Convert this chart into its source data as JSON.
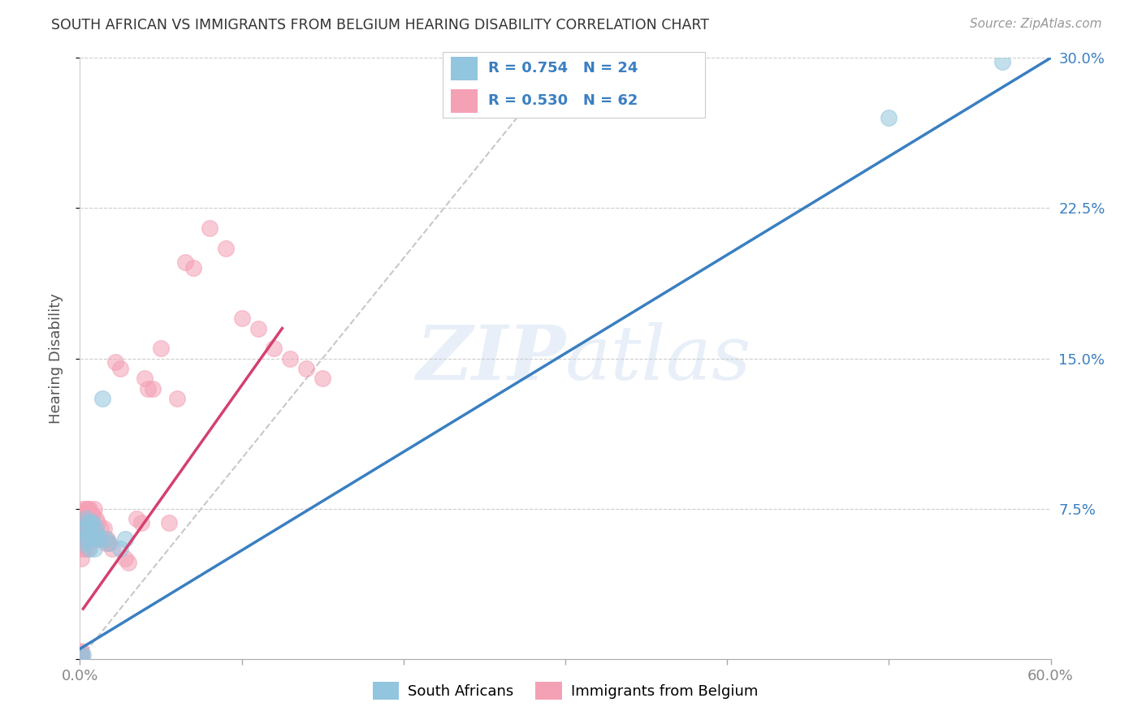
{
  "title": "SOUTH AFRICAN VS IMMIGRANTS FROM BELGIUM HEARING DISABILITY CORRELATION CHART",
  "source": "Source: ZipAtlas.com",
  "ylabel": "Hearing Disability",
  "xlim": [
    0.0,
    0.6
  ],
  "ylim": [
    0.0,
    0.3
  ],
  "xticks": [
    0.0,
    0.1,
    0.2,
    0.3,
    0.4,
    0.5,
    0.6
  ],
  "yticks": [
    0.0,
    0.075,
    0.15,
    0.225,
    0.3
  ],
  "legend_r1": "R = 0.754",
  "legend_n1": "N = 24",
  "legend_r2": "R = 0.530",
  "legend_n2": "N = 62",
  "color_blue": "#92c5de",
  "color_pink": "#f4a0b5",
  "line_blue": "#3a7fc1",
  "line_pink": "#d44070",
  "line_diag": "#c8c8c8",
  "sa_points_x": [
    0.001,
    0.002,
    0.003,
    0.003,
    0.004,
    0.004,
    0.005,
    0.005,
    0.006,
    0.006,
    0.007,
    0.008,
    0.008,
    0.009,
    0.01,
    0.011,
    0.012,
    0.014,
    0.016,
    0.018,
    0.025,
    0.028,
    0.5,
    0.57
  ],
  "sa_points_y": [
    0.001,
    0.002,
    0.058,
    0.065,
    0.06,
    0.07,
    0.063,
    0.068,
    0.055,
    0.065,
    0.068,
    0.06,
    0.068,
    0.055,
    0.065,
    0.062,
    0.06,
    0.13,
    0.06,
    0.058,
    0.055,
    0.06,
    0.27,
    0.298
  ],
  "imm_points_x": [
    0.001,
    0.001,
    0.001,
    0.001,
    0.001,
    0.001,
    0.001,
    0.001,
    0.002,
    0.002,
    0.002,
    0.002,
    0.002,
    0.003,
    0.003,
    0.003,
    0.003,
    0.004,
    0.004,
    0.004,
    0.005,
    0.005,
    0.005,
    0.006,
    0.006,
    0.007,
    0.007,
    0.008,
    0.008,
    0.009,
    0.01,
    0.01,
    0.011,
    0.012,
    0.013,
    0.015,
    0.016,
    0.017,
    0.018,
    0.02,
    0.022,
    0.025,
    0.028,
    0.03,
    0.035,
    0.038,
    0.04,
    0.042,
    0.045,
    0.05,
    0.055,
    0.06,
    0.065,
    0.07,
    0.08,
    0.09,
    0.1,
    0.11,
    0.12,
    0.13,
    0.14,
    0.15
  ],
  "imm_points_y": [
    0.001,
    0.002,
    0.003,
    0.004,
    0.05,
    0.058,
    0.065,
    0.07,
    0.055,
    0.06,
    0.065,
    0.07,
    0.075,
    0.055,
    0.06,
    0.065,
    0.072,
    0.06,
    0.068,
    0.075,
    0.055,
    0.065,
    0.075,
    0.065,
    0.075,
    0.065,
    0.072,
    0.06,
    0.072,
    0.075,
    0.06,
    0.07,
    0.068,
    0.06,
    0.065,
    0.065,
    0.058,
    0.06,
    0.058,
    0.055,
    0.148,
    0.145,
    0.05,
    0.048,
    0.07,
    0.068,
    0.14,
    0.135,
    0.135,
    0.155,
    0.068,
    0.13,
    0.198,
    0.195,
    0.215,
    0.205,
    0.17,
    0.165,
    0.155,
    0.15,
    0.145,
    0.14
  ],
  "blue_line_x": [
    0.0,
    0.6
  ],
  "blue_line_y": [
    0.005,
    0.3
  ],
  "pink_line_x": [
    0.002,
    0.125
  ],
  "pink_line_y": [
    0.025,
    0.165
  ],
  "diag_line_x": [
    0.0,
    0.3
  ],
  "diag_line_y": [
    0.0,
    0.3
  ]
}
